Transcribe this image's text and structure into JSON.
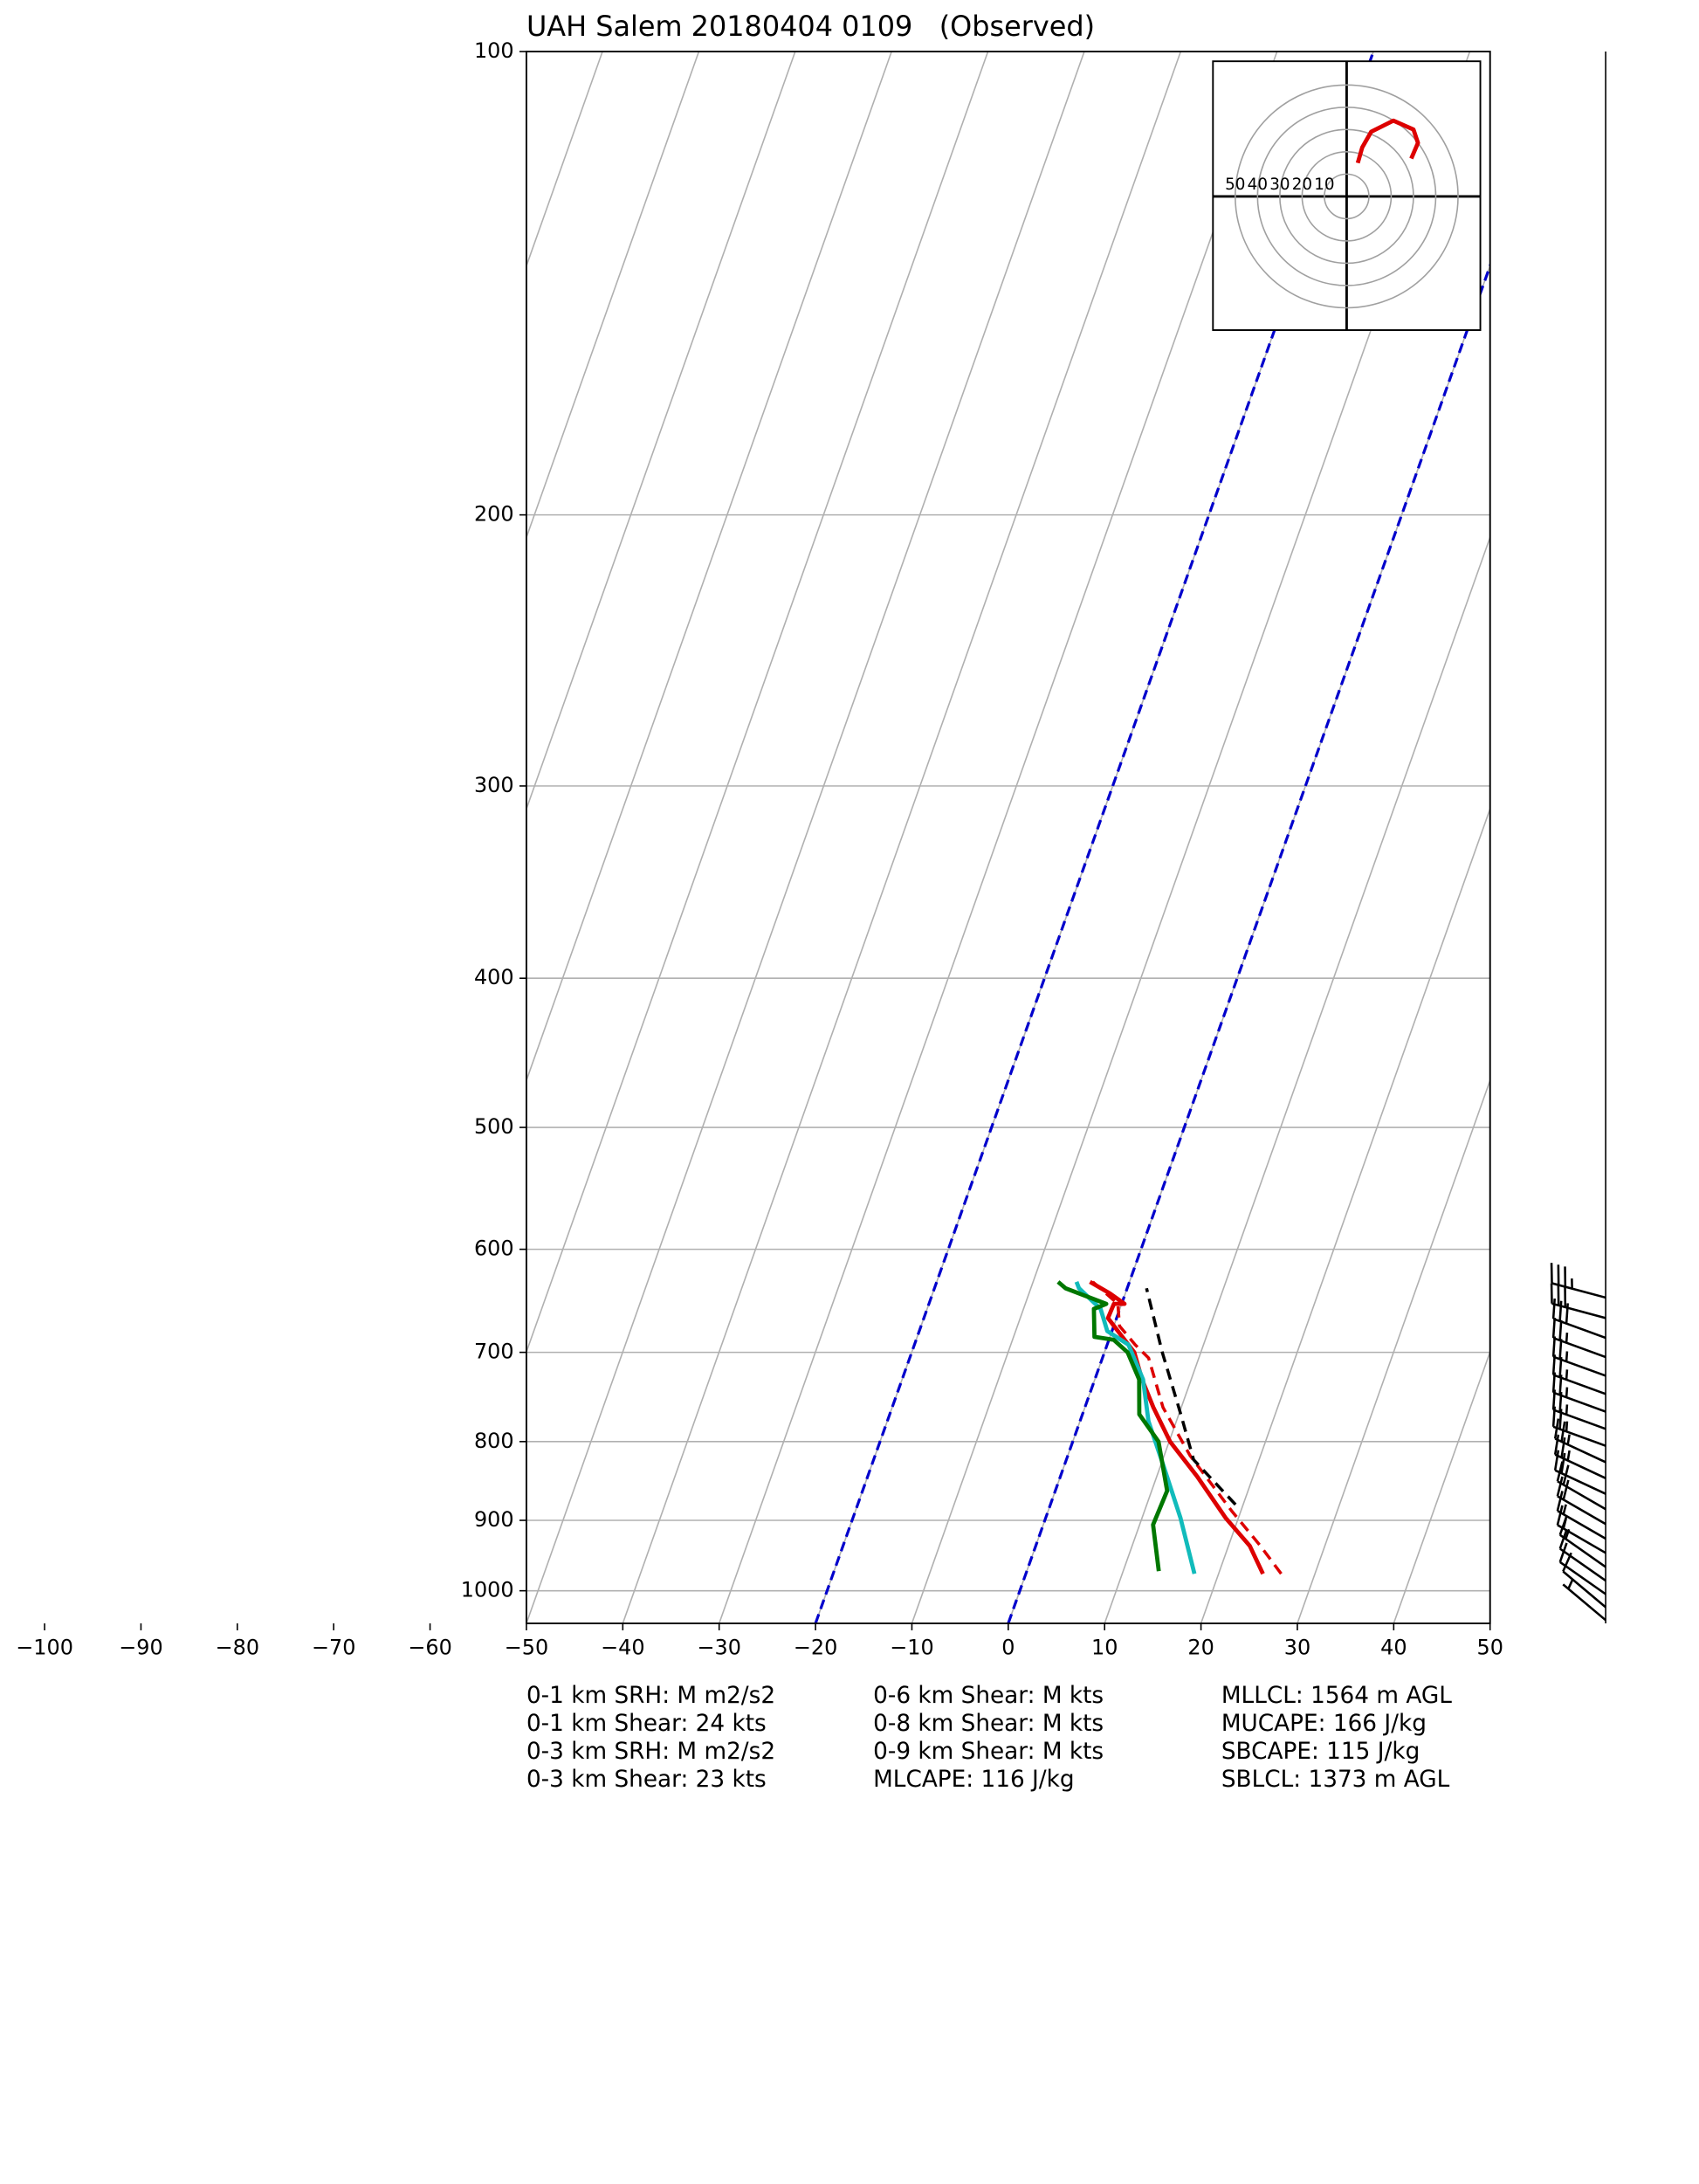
{
  "chart_data": {
    "type": "skewt",
    "title": "UAH Salem 20180404 0109   (Observed)",
    "xlim": [
      -50,
      50
    ],
    "xticks": [
      {
        "value": -100,
        "label": "−100"
      },
      {
        "value": -90,
        "label": "−90"
      },
      {
        "value": -80,
        "label": "−80"
      },
      {
        "value": -70,
        "label": "−70"
      },
      {
        "value": -60,
        "label": "−60"
      },
      {
        "value": -50,
        "label": "−50"
      },
      {
        "value": -40,
        "label": "−40"
      },
      {
        "value": -30,
        "label": "−30"
      },
      {
        "value": -20,
        "label": "−20"
      },
      {
        "value": -10,
        "label": "−10"
      },
      0,
      10,
      20,
      30,
      40,
      50
    ],
    "ylim": [
      1050,
      100
    ],
    "yticks": [
      100,
      200,
      300,
      400,
      500,
      600,
      700,
      800,
      900,
      1000
    ],
    "log_y": true,
    "grid": true,
    "dashed_isotherms": [
      -20,
      0
    ],
    "dashed_isotherm_color": "#0000cc",
    "series": [
      {
        "color": "#dd0000",
        "dash": false,
        "pressure": [
          975,
          935,
          897,
          843,
          800,
          760,
          729,
          700,
          678,
          665,
          651,
          651,
          641,
          630
        ],
        "values": [
          24.6,
          22.2,
          18.7,
          14.2,
          10.1,
          7.1,
          4.9,
          3.1,
          0.6,
          -0.9,
          -0.8,
          0.3,
          -1.6,
          -4.1
        ]
      },
      {
        "color": "#dd0000",
        "dash": true,
        "pressure": [
          975,
          935,
          888,
          817,
          760,
          706,
          692,
          673,
          651,
          630
        ],
        "values": [
          26.5,
          23.3,
          19.1,
          12.7,
          8.1,
          4.8,
          2.9,
          0.6,
          -0.4,
          -3.8
        ]
      },
      {
        "color": "#11bbbb",
        "dash": false,
        "pressure": [
          975,
          897,
          826,
          776,
          729,
          692,
          678,
          656,
          636,
          630
        ],
        "values": [
          17.5,
          14,
          10.1,
          7.1,
          5.0,
          2.2,
          -0.5,
          -2,
          -5,
          -5.5
        ]
      },
      {
        "color": "#007700",
        "dash": false,
        "pressure": [
          971,
          906,
          861,
          800,
          768,
          729,
          700,
          687,
          684,
          656,
          651,
          636,
          630
        ],
        "values": [
          13.7,
          11.4,
          11.6,
          8.9,
          5.9,
          4.6,
          2.4,
          0.5,
          -1.6,
          -2.7,
          -1.6,
          -6.4,
          -7.4
        ]
      },
      {
        "color": "#000000",
        "dash": true,
        "pressure": [
          879,
          822,
          768,
          700,
          636
        ],
        "values": [
          19.2,
          13.2,
          10.2,
          6,
          2
        ]
      }
    ],
    "hodograph": {
      "rticks": [
        50,
        40,
        30,
        20,
        10
      ],
      "color": "#dd0000",
      "u": [
        5,
        7,
        11,
        21,
        30,
        32,
        29
      ],
      "v": [
        15,
        22,
        29,
        34,
        30,
        24,
        17
      ]
    },
    "wind": {
      "pressure": [
        645,
        665,
        685,
        705,
        725,
        745,
        765,
        785,
        805,
        825,
        845,
        865,
        885,
        905,
        925,
        945,
        965,
        985,
        1005,
        1025,
        1045
      ],
      "speed": [
        35,
        30,
        30,
        25,
        25,
        25,
        25,
        25,
        25,
        25,
        25,
        20,
        20,
        20,
        15,
        15,
        15,
        10,
        10,
        10,
        5
      ],
      "direction": [
        255,
        255,
        250,
        250,
        250,
        250,
        250,
        250,
        250,
        245,
        245,
        245,
        240,
        240,
        240,
        240,
        235,
        235,
        235,
        230,
        230
      ]
    },
    "annotations": [
      [
        "0-1 km SRH: M m2/s2",
        "0-1 km Shear: 24 kts",
        "0-3 km SRH: M m2/s2",
        "0-3 km Shear: 23 kts"
      ],
      [
        "0-6 km Shear: M kts",
        "0-8 km Shear: M kts",
        "0-9 km Shear: M kts",
        "MLCAPE: 116 J/kg"
      ],
      [
        "MLLCL: 1564 m AGL",
        "MUCAPE: 166 J/kg",
        "SBCAPE: 115 J/kg",
        "SBLCL: 1373 m AGL"
      ]
    ]
  }
}
